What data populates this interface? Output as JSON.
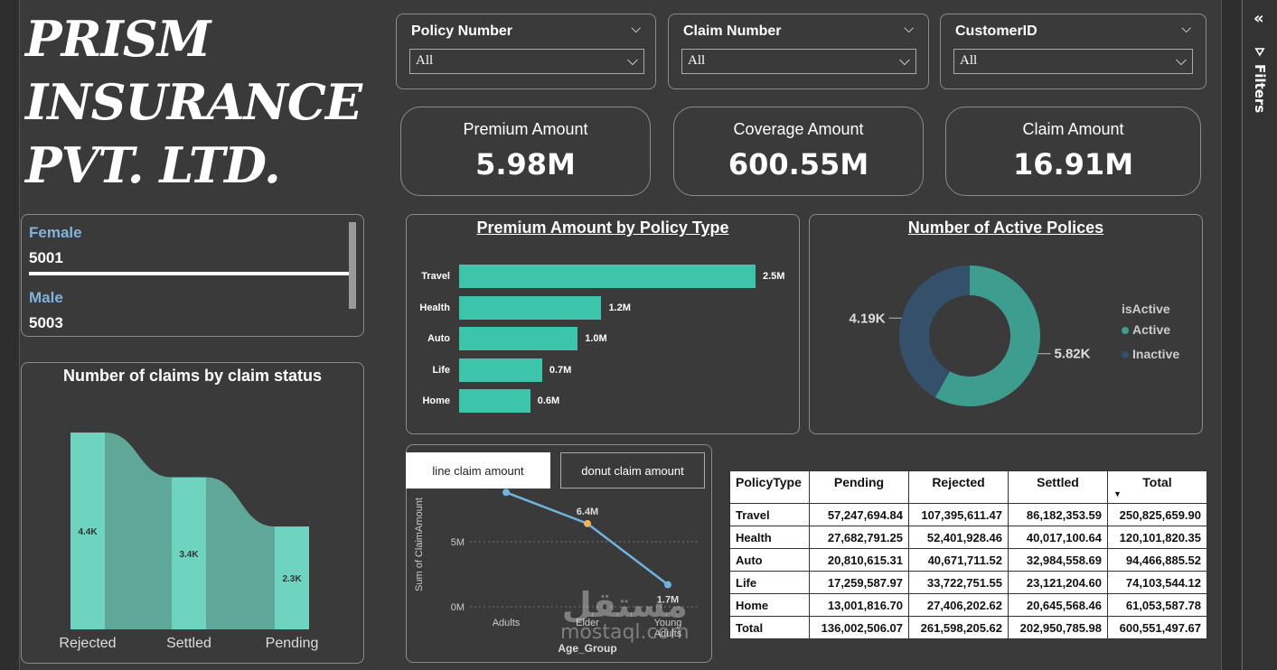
{
  "company": {
    "line1": "PRISM",
    "line2": "INSURANCE",
    "line3": "PVT. LTD."
  },
  "filters_pane": {
    "label": "Filters"
  },
  "slicers": [
    {
      "title": "Policy Number",
      "value": "All"
    },
    {
      "title": "Claim Number",
      "value": "All"
    },
    {
      "title": "CustomerID",
      "value": "All"
    }
  ],
  "kpis": [
    {
      "label": "Premium Amount",
      "value": "5.98M"
    },
    {
      "label": "Coverage Amount",
      "value": "600.55M"
    },
    {
      "label": "Claim Amount",
      "value": "16.91M"
    }
  ],
  "gender": [
    {
      "label": "Female",
      "value": "5001"
    },
    {
      "label": "Male",
      "value": "5003"
    }
  ],
  "claims_status": {
    "title": "Number of claims by claim status",
    "chart_data": {
      "type": "bar",
      "categories": [
        "Rejected",
        "Settled",
        "Pending"
      ],
      "values": [
        4.4,
        3.4,
        2.3
      ],
      "labels": [
        "4.4K",
        "3.4K",
        "2.3K"
      ]
    }
  },
  "premium_by_type": {
    "title": "Premium Amount by Policy Type",
    "chart_data": {
      "type": "bar",
      "orientation": "horizontal",
      "categories": [
        "Travel",
        "Health",
        "Auto",
        "Life",
        "Home"
      ],
      "values": [
        2.5,
        1.2,
        1.0,
        0.7,
        0.6
      ],
      "labels": [
        "2.5M",
        "1.2M",
        "1.0M",
        "0.7M",
        "0.6M"
      ]
    }
  },
  "active_policies": {
    "title": "Number of Active Polices",
    "legend_title": "isActive",
    "colors": {
      "Active": "#3d9e8f",
      "Inactive": "#34506b"
    },
    "chart_data": {
      "type": "pie",
      "categories": [
        "Active",
        "Inactive"
      ],
      "values": [
        5.82,
        4.19
      ],
      "labels": [
        "5.82K",
        "4.19K"
      ]
    }
  },
  "age_chart": {
    "tabs": [
      "line claim amount",
      "donut claim amount"
    ],
    "chart_data": {
      "type": "line",
      "xlabel": "Age_Group",
      "ylabel": "Sum of ClaimAmount",
      "categories": [
        "Adults",
        "Elder",
        "Young Adults"
      ],
      "values": [
        8.8,
        6.4,
        1.7
      ],
      "labels": [
        "8.8M",
        "6.4M",
        "1.7M"
      ],
      "y_ticks": [
        "0M",
        "5M"
      ],
      "point_colors": [
        "#6fb4e0",
        "#f0b35a",
        "#6fb4e0"
      ]
    }
  },
  "matrix": {
    "columns": [
      "PolicyType",
      "Pending",
      "Rejected",
      "Settled",
      "Total"
    ],
    "rows": [
      [
        "Travel",
        "57,247,694.84",
        "107,395,611.47",
        "86,182,353.59",
        "250,825,659.90"
      ],
      [
        "Health",
        "27,682,791.25",
        "52,401,928.46",
        "40,017,100.64",
        "120,101,820.35"
      ],
      [
        "Auto",
        "20,810,615.31",
        "40,671,711.52",
        "32,984,558.69",
        "94,466,885.52"
      ],
      [
        "Life",
        "17,259,587.97",
        "33,722,751.55",
        "23,121,204.60",
        "74,103,544.12"
      ],
      [
        "Home",
        "13,001,816.70",
        "27,406,202.62",
        "20,645,568.46",
        "61,053,587.78"
      ],
      [
        "Total",
        "136,002,506.07",
        "261,598,205.62",
        "202,950,785.98",
        "600,551,497.67"
      ]
    ]
  },
  "watermark": {
    "arabic": "مستقل",
    "latin": "mostaql.com"
  }
}
